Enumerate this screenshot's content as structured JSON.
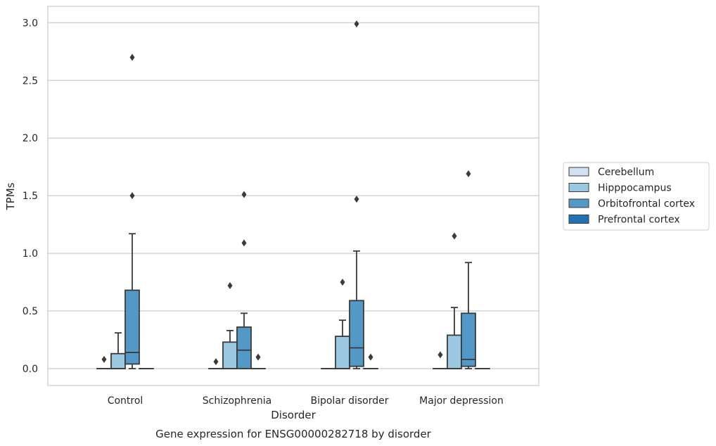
{
  "chart_data": {
    "type": "box",
    "title": "",
    "caption": "Gene expression for ENSG00000282718 by disorder",
    "xlabel": "Disorder",
    "ylabel": "TPMs",
    "ylim": [
      -0.15,
      3.15
    ],
    "yticks": [
      0.0,
      0.5,
      1.0,
      1.5,
      2.0,
      2.5,
      3.0
    ],
    "ytick_labels": [
      "0.0",
      "0.5",
      "1.0",
      "1.5",
      "2.0",
      "2.5",
      "3.0"
    ],
    "categories": [
      "Control",
      "Schizophrenia",
      "Bipolar disorder",
      "Major depression"
    ],
    "grid": "horizontal",
    "legend_position": "right",
    "series": [
      {
        "name": "Cerebellum",
        "color": "#d0e1f2",
        "boxes": [
          {
            "q1": 0.0,
            "median": 0.0,
            "q3": 0.0,
            "whisker_low": 0.0,
            "whisker_high": 0.0,
            "outliers": [
              0.08
            ]
          },
          {
            "q1": 0.0,
            "median": 0.0,
            "q3": 0.0,
            "whisker_low": 0.0,
            "whisker_high": 0.0,
            "outliers": [
              0.06
            ]
          },
          {
            "q1": 0.0,
            "median": 0.0,
            "q3": 0.0,
            "whisker_low": 0.0,
            "whisker_high": 0.0,
            "outliers": []
          },
          {
            "q1": 0.0,
            "median": 0.0,
            "q3": 0.0,
            "whisker_low": 0.0,
            "whisker_high": 0.0,
            "outliers": [
              0.12
            ]
          }
        ]
      },
      {
        "name": "Hipppocampus",
        "color": "#9ac8e0",
        "boxes": [
          {
            "q1": 0.0,
            "median": 0.0,
            "q3": 0.13,
            "whisker_low": 0.0,
            "whisker_high": 0.31,
            "outliers": []
          },
          {
            "q1": 0.0,
            "median": 0.0,
            "q3": 0.23,
            "whisker_low": 0.0,
            "whisker_high": 0.33,
            "outliers": [
              0.72
            ]
          },
          {
            "q1": 0.0,
            "median": 0.0,
            "q3": 0.28,
            "whisker_low": 0.0,
            "whisker_high": 0.42,
            "outliers": [
              0.75
            ]
          },
          {
            "q1": 0.0,
            "median": 0.0,
            "q3": 0.29,
            "whisker_low": 0.0,
            "whisker_high": 0.53,
            "outliers": [
              1.15
            ]
          }
        ]
      },
      {
        "name": "Orbitofrontal cortex",
        "color": "#5399c7",
        "boxes": [
          {
            "q1": 0.04,
            "median": 0.14,
            "q3": 0.68,
            "whisker_low": 0.0,
            "whisker_high": 1.17,
            "outliers": [
              1.5,
              2.7
            ]
          },
          {
            "q1": 0.0,
            "median": 0.16,
            "q3": 0.36,
            "whisker_low": 0.0,
            "whisker_high": 0.48,
            "outliers": [
              1.09,
              1.51
            ]
          },
          {
            "q1": 0.02,
            "median": 0.18,
            "q3": 0.59,
            "whisker_low": 0.0,
            "whisker_high": 1.02,
            "outliers": [
              1.47,
              2.99
            ]
          },
          {
            "q1": 0.02,
            "median": 0.08,
            "q3": 0.48,
            "whisker_low": 0.0,
            "whisker_high": 0.92,
            "outliers": [
              1.69
            ]
          }
        ]
      },
      {
        "name": "Prefrontal cortex",
        "color": "#2171b5",
        "boxes": [
          {
            "q1": 0.0,
            "median": 0.0,
            "q3": 0.0,
            "whisker_low": 0.0,
            "whisker_high": 0.0,
            "outliers": []
          },
          {
            "q1": 0.0,
            "median": 0.0,
            "q3": 0.0,
            "whisker_low": 0.0,
            "whisker_high": 0.0,
            "outliers": [
              0.1
            ]
          },
          {
            "q1": 0.0,
            "median": 0.0,
            "q3": 0.0,
            "whisker_low": 0.0,
            "whisker_high": 0.0,
            "outliers": [
              0.1
            ]
          },
          {
            "q1": 0.0,
            "median": 0.0,
            "q3": 0.0,
            "whisker_low": 0.0,
            "whisker_high": 0.0,
            "outliers": []
          }
        ]
      }
    ]
  }
}
